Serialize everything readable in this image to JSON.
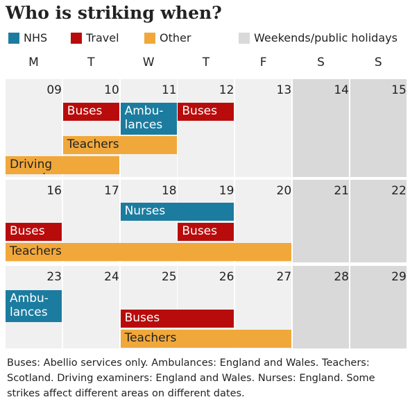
{
  "title": "Who is striking when?",
  "legend": [
    {
      "name": "NHS",
      "color": "#1b7c9f"
    },
    {
      "name": "Travel",
      "color": "#b80c0c"
    },
    {
      "name": "Other",
      "color": "#f1a83b"
    },
    {
      "name": "Weekends/public holidays",
      "color": "#d9d9d9"
    }
  ],
  "weekdays": [
    "M",
    "T",
    "W",
    "T",
    "F",
    "S",
    "S"
  ],
  "weeks": [
    {
      "dates": [
        "09",
        "10",
        "11",
        "12",
        "13",
        "14",
        "15"
      ],
      "events": [
        {
          "label": "Buses",
          "kind": "Travel",
          "from": "10",
          "to": "10"
        },
        {
          "label": "Ambu-lances",
          "kind": "NHS",
          "from": "11",
          "to": "11"
        },
        {
          "label": "Buses",
          "kind": "Travel",
          "from": "12",
          "to": "12"
        },
        {
          "label": "Teachers",
          "kind": "Other",
          "from": "10",
          "to": "11"
        },
        {
          "label": "Driving examiners",
          "kind": "Other",
          "from": "09",
          "to": "10"
        }
      ]
    },
    {
      "dates": [
        "16",
        "17",
        "18",
        "19",
        "20",
        "21",
        "22"
      ],
      "events": [
        {
          "label": "Nurses",
          "kind": "NHS",
          "from": "18",
          "to": "19"
        },
        {
          "label": "Buses",
          "kind": "Travel",
          "from": "16",
          "to": "16"
        },
        {
          "label": "Buses",
          "kind": "Travel",
          "from": "19",
          "to": "19"
        },
        {
          "label": "Teachers",
          "kind": "Other",
          "from": "16",
          "to": "20"
        }
      ]
    },
    {
      "dates": [
        "23",
        "24",
        "25",
        "26",
        "27",
        "28",
        "29"
      ],
      "events": [
        {
          "label": "Ambu-lances",
          "kind": "NHS",
          "from": "23",
          "to": "23"
        },
        {
          "label": "Buses",
          "kind": "Travel",
          "from": "25",
          "to": "26"
        },
        {
          "label": "Teachers",
          "kind": "Other",
          "from": "25",
          "to": "27"
        }
      ]
    }
  ],
  "note": "Buses: Abellio services only. Ambulances: England and Wales. Teachers: Scotland. Driving examiners: England and Wales. Nurses: England. Some strikes affect different areas on different dates."
}
